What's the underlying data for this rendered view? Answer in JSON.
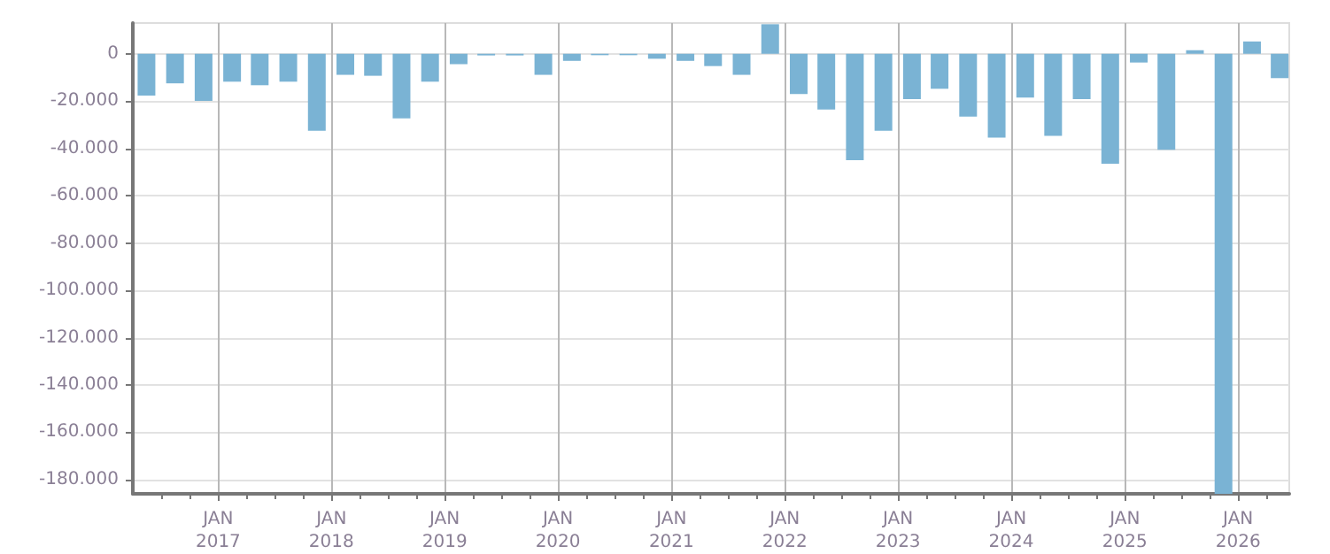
{
  "chart_data": {
    "type": "bar",
    "color": "#7ab3d4",
    "x": [
      "2016-05-15",
      "2016-08-15",
      "2016-11-15",
      "2017-02-15",
      "2017-05-15",
      "2017-08-15",
      "2017-11-15",
      "2018-02-15",
      "2018-05-15",
      "2018-08-15",
      "2018-11-15",
      "2019-02-15",
      "2019-05-15",
      "2019-08-15",
      "2019-11-15",
      "2020-02-15",
      "2020-05-15",
      "2020-08-15",
      "2020-11-15",
      "2021-02-15",
      "2021-05-15",
      "2021-08-15",
      "2021-11-15",
      "2022-02-15",
      "2022-05-15",
      "2022-08-15",
      "2022-11-15",
      "2023-02-15",
      "2023-05-15",
      "2023-08-15",
      "2023-11-15",
      "2024-02-15",
      "2024-05-15",
      "2024-08-15",
      "2024-11-15",
      "2025-02-15",
      "2025-05-15",
      "2025-08-15",
      "2025-11-15",
      "2026-02-15",
      "2026-05-15"
    ],
    "values": [
      -17700,
      -12500,
      -19900,
      -11800,
      -13300,
      -11800,
      -32500,
      -8900,
      -9300,
      -27300,
      -11800,
      -4400,
      -700,
      -700,
      -8900,
      -3000,
      -600,
      -600,
      -2100,
      -3000,
      -5200,
      -8900,
      12500,
      -17000,
      -23600,
      -45000,
      -32500,
      -19200,
      -14800,
      -26600,
      -35400,
      -18500,
      -34700,
      -19200,
      -46500,
      -3700,
      -40600,
      1500,
      -186000,
      5200,
      -10300
    ],
    "xlim": [
      "2016-04-01",
      "2026-06-15"
    ],
    "xticks": [
      {
        "value": "2016-07-01",
        "label": null
      },
      {
        "value": "2016-10-01",
        "label": null
      },
      {
        "value": "2017-01-01",
        "label": "JAN\n2017"
      },
      {
        "value": "2017-04-01",
        "label": null
      },
      {
        "value": "2017-07-01",
        "label": null
      },
      {
        "value": "2017-10-01",
        "label": null
      },
      {
        "value": "2018-01-01",
        "label": "JAN\n2018"
      },
      {
        "value": "2018-04-01",
        "label": null
      },
      {
        "value": "2018-07-01",
        "label": null
      },
      {
        "value": "2018-10-01",
        "label": null
      },
      {
        "value": "2019-01-01",
        "label": "JAN\n2019"
      },
      {
        "value": "2019-04-01",
        "label": null
      },
      {
        "value": "2019-07-01",
        "label": null
      },
      {
        "value": "2019-10-01",
        "label": null
      },
      {
        "value": "2020-01-01",
        "label": "JAN\n2020"
      },
      {
        "value": "2020-04-01",
        "label": null
      },
      {
        "value": "2020-07-01",
        "label": null
      },
      {
        "value": "2020-10-01",
        "label": null
      },
      {
        "value": "2021-01-01",
        "label": "JAN\n2021"
      },
      {
        "value": "2021-04-01",
        "label": null
      },
      {
        "value": "2021-07-01",
        "label": null
      },
      {
        "value": "2021-10-01",
        "label": null
      },
      {
        "value": "2022-01-01",
        "label": "JAN\n2022"
      },
      {
        "value": "2022-04-01",
        "label": null
      },
      {
        "value": "2022-07-01",
        "label": null
      },
      {
        "value": "2022-10-01",
        "label": null
      },
      {
        "value": "2023-01-01",
        "label": "JAN\n2023"
      },
      {
        "value": "2023-04-01",
        "label": null
      },
      {
        "value": "2023-07-01",
        "label": null
      },
      {
        "value": "2023-10-01",
        "label": null
      },
      {
        "value": "2024-01-01",
        "label": "JAN\n2024"
      },
      {
        "value": "2024-04-01",
        "label": null
      },
      {
        "value": "2024-07-01",
        "label": null
      },
      {
        "value": "2024-10-01",
        "label": null
      },
      {
        "value": "2025-01-01",
        "label": "JAN\n2025"
      },
      {
        "value": "2025-04-01",
        "label": null
      },
      {
        "value": "2025-07-01",
        "label": null
      },
      {
        "value": "2025-10-01",
        "label": null
      },
      {
        "value": "2026-01-01",
        "label": "JAN\n2026"
      },
      {
        "value": "2026-04-01",
        "label": null
      }
    ],
    "ylim": [
      -186000,
      13000
    ],
    "yticks": [
      {
        "value": -180000,
        "label": "-180.000"
      },
      {
        "value": -160000,
        "label": "-160.000"
      },
      {
        "value": -140000,
        "label": "-140.000"
      },
      {
        "value": -120000,
        "label": "-120.000"
      },
      {
        "value": -100000,
        "label": "-100.000"
      },
      {
        "value": -80000,
        "label": "-80.000"
      },
      {
        "value": -60000,
        "label": "-60.000"
      },
      {
        "value": -40000,
        "label": "-40.000"
      },
      {
        "value": -20000,
        "label": "-20.000"
      },
      {
        "value": 0,
        "label": "0"
      }
    ],
    "grid": true
  }
}
